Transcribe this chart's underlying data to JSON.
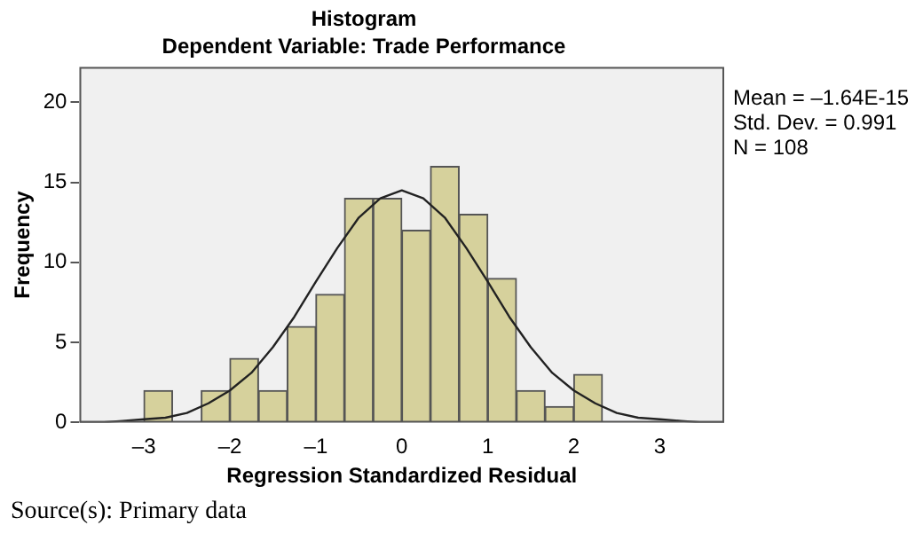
{
  "chart_data": {
    "type": "histogram",
    "title": "Histogram",
    "subtitle": "Dependent Variable: Trade Performance",
    "xlabel": "Regression Standardized Residual",
    "ylabel": "Frequency",
    "bins": [
      -3,
      -2.667,
      -2.333,
      -2,
      -1.667,
      -1.333,
      -1,
      -0.667,
      -0.333,
      0,
      0.333,
      0.667,
      1,
      1.333,
      1.667,
      2,
      2.333
    ],
    "values": [
      2,
      0,
      2,
      4,
      2,
      6,
      8,
      14,
      14,
      12,
      16,
      13,
      9,
      2,
      1,
      3
    ],
    "color": "#d6d19c",
    "series": [
      {
        "type": "line",
        "color": "#222222",
        "x": [
          -3.75,
          -3.5,
          -3.25,
          -3,
          -2.75,
          -2.5,
          -2.25,
          -2,
          -1.75,
          -1.5,
          -1.25,
          -1,
          -0.75,
          -0.5,
          -0.25,
          0,
          0.25,
          0.5,
          0.75,
          1,
          1.25,
          1.5,
          1.75,
          2,
          2.25,
          2.5,
          2.75,
          3,
          3.25,
          3.5,
          3.75
        ],
        "values": [
          0,
          0,
          0.1,
          0.2,
          0.3,
          0.6,
          1.2,
          2.0,
          3.1,
          4.7,
          6.6,
          8.8,
          10.9,
          12.8,
          14.0,
          14.5,
          14.0,
          12.8,
          10.9,
          8.8,
          6.6,
          4.7,
          3.1,
          2.0,
          1.2,
          0.6,
          0.3,
          0.2,
          0.1,
          0,
          0
        ]
      }
    ],
    "xlim": [
      -3.75,
      3.75
    ],
    "ylim": [
      0,
      22.2
    ],
    "xticks": [
      {
        "value": -3,
        "label": "–3"
      },
      {
        "value": -2,
        "label": "–2"
      },
      {
        "value": -1,
        "label": "–1"
      },
      0,
      1,
      2,
      3
    ],
    "yticks": [
      0,
      5,
      10,
      15,
      20
    ],
    "grid": false,
    "legend": false,
    "marker": "none",
    "annotations": [
      "Mean = –1.64E-15",
      "Std. Dev. = 0.991",
      "N = 108",
      "Source(s): Primary data"
    ]
  }
}
